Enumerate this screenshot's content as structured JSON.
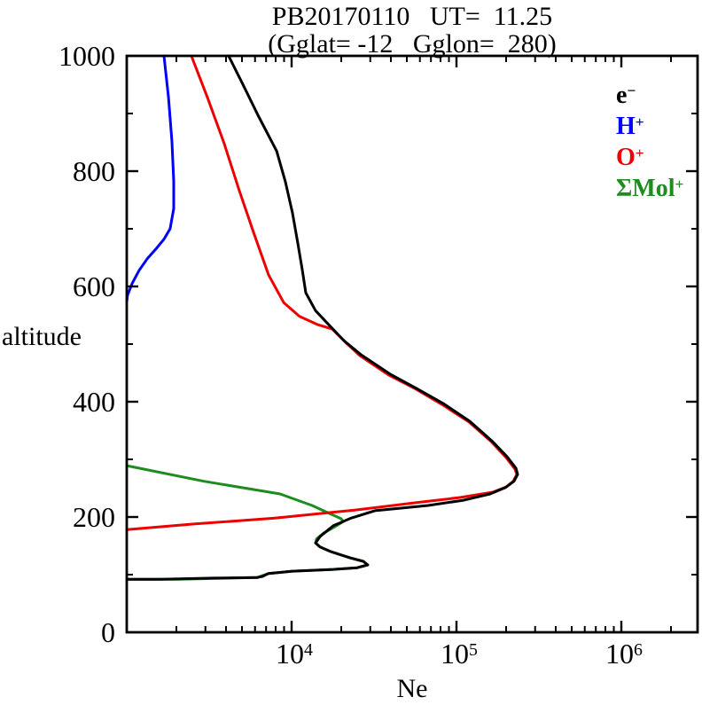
{
  "title": {
    "line1": "PB20170110   UT=  11.25",
    "line2": "(Gglat= -12   Gglon=  280)"
  },
  "y_axis": {
    "label": "altitude",
    "range": [
      0,
      1000
    ],
    "minor_step": 100,
    "ticks": [
      {
        "value": 1000,
        "label": "1000"
      },
      {
        "value": 800,
        "label": "800"
      },
      {
        "value": 600,
        "label": "600"
      },
      {
        "value": 400,
        "label": "400"
      },
      {
        "value": 200,
        "label": "200"
      },
      {
        "value": 0,
        "label": "0"
      }
    ]
  },
  "x_axis": {
    "label": "Ne",
    "scale": "log10",
    "log_range": [
      3,
      6.46
    ],
    "minor_multiples": [
      2,
      3,
      4,
      5,
      6,
      7,
      8,
      9
    ],
    "ticks": [
      {
        "log10": 4,
        "base": "10",
        "exp": "4"
      },
      {
        "log10": 5,
        "base": "10",
        "exp": "5"
      },
      {
        "log10": 6,
        "base": "10",
        "exp": "6"
      }
    ]
  },
  "legend": {
    "entries": [
      {
        "id": "electron",
        "base": "e",
        "sup": "−",
        "color": "#000000"
      },
      {
        "id": "h-plus",
        "base": "H",
        "sup": "+",
        "color": "#0000ff"
      },
      {
        "id": "o-plus",
        "base": "O",
        "sup": "+",
        "color": "#ee0000"
      },
      {
        "id": "mol-plus",
        "base": "ΣMol",
        "sup": "+",
        "color": "#1e8c1e"
      }
    ]
  },
  "chart_data": {
    "type": "line",
    "title": "PB20170110 UT= 11.25 (Gglat= -12 Gglon= 280)",
    "xlabel": "Ne",
    "ylabel": "altitude",
    "x_scale": "log10",
    "x_log_range": [
      3,
      6.46
    ],
    "ylim": [
      0,
      1000
    ],
    "grid": false,
    "legend_position": "upper-right-inside",
    "point_format": "[log10(Ne), altitude_km]",
    "series": [
      {
        "name": "e-",
        "color": "#000000",
        "points": [
          [
            3.618,
            1000
          ],
          [
            3.704,
            951
          ],
          [
            3.796,
            897
          ],
          [
            3.909,
            835
          ],
          [
            3.962,
            782
          ],
          [
            4.005,
            728
          ],
          [
            4.038,
            674
          ],
          [
            4.065,
            628
          ],
          [
            4.086,
            589
          ],
          [
            4.145,
            558
          ],
          [
            4.221,
            535
          ],
          [
            4.317,
            506
          ],
          [
            4.419,
            482
          ],
          [
            4.597,
            448
          ],
          [
            4.758,
            423
          ],
          [
            4.919,
            397
          ],
          [
            5.081,
            366
          ],
          [
            5.215,
            332
          ],
          [
            5.306,
            305
          ],
          [
            5.36,
            285
          ],
          [
            5.371,
            274
          ],
          [
            5.349,
            262
          ],
          [
            5.296,
            251
          ],
          [
            5.204,
            240
          ],
          [
            5.043,
            229
          ],
          [
            4.828,
            220
          ],
          [
            4.651,
            215
          ],
          [
            4.505,
            211
          ],
          [
            4.36,
            198
          ],
          [
            4.253,
            185
          ],
          [
            4.172,
            166
          ],
          [
            4.145,
            155
          ],
          [
            4.172,
            148
          ],
          [
            4.237,
            140
          ],
          [
            4.355,
            129
          ],
          [
            4.435,
            123
          ],
          [
            4.462,
            117
          ],
          [
            4.398,
            112
          ],
          [
            4.253,
            109
          ],
          [
            4.005,
            106
          ],
          [
            3.86,
            102
          ],
          [
            3.823,
            97
          ],
          [
            3.79,
            95
          ],
          [
            3.522,
            94
          ],
          [
            3.199,
            92
          ],
          [
            3.0,
            92
          ]
        ]
      },
      {
        "name": "H+",
        "color": "#0000ff",
        "points": [
          [
            3.226,
            1000
          ],
          [
            3.253,
            928
          ],
          [
            3.274,
            851
          ],
          [
            3.285,
            782
          ],
          [
            3.285,
            735
          ],
          [
            3.263,
            700
          ],
          [
            3.226,
            682
          ],
          [
            3.177,
            665
          ],
          [
            3.124,
            648
          ],
          [
            3.075,
            628
          ],
          [
            3.032,
            605
          ],
          [
            3.005,
            585
          ],
          [
            3.0,
            574
          ]
        ]
      },
      {
        "name": "O+",
        "color": "#ee0000",
        "points": [
          [
            3.392,
            1000
          ],
          [
            3.489,
            928
          ],
          [
            3.591,
            848
          ],
          [
            3.683,
            766
          ],
          [
            3.769,
            694
          ],
          [
            3.86,
            620
          ],
          [
            3.952,
            572
          ],
          [
            4.048,
            548
          ],
          [
            4.156,
            534
          ],
          [
            4.247,
            526
          ],
          [
            4.328,
            503
          ],
          [
            4.414,
            480
          ],
          [
            4.591,
            446
          ],
          [
            4.753,
            422
          ],
          [
            4.914,
            395
          ],
          [
            5.075,
            365
          ],
          [
            5.21,
            331
          ],
          [
            5.301,
            303
          ],
          [
            5.355,
            283
          ],
          [
            5.366,
            274
          ],
          [
            5.344,
            262
          ],
          [
            5.301,
            252
          ],
          [
            5.22,
            243
          ],
          [
            5.027,
            234
          ],
          [
            4.758,
            225
          ],
          [
            4.382,
            212
          ],
          [
            3.898,
            198
          ],
          [
            3.414,
            188
          ],
          [
            3.0,
            178
          ]
        ]
      },
      {
        "name": "SigmaMol+",
        "color": "#1e8c1e",
        "points": [
          [
            3.0,
            289
          ],
          [
            3.468,
            262
          ],
          [
            3.93,
            240
          ],
          [
            4.124,
            220
          ],
          [
            4.231,
            206
          ],
          [
            4.301,
            197
          ],
          [
            4.312,
            192
          ],
          [
            4.263,
            183
          ],
          [
            4.194,
            172
          ],
          [
            4.151,
            162
          ],
          [
            4.145,
            155
          ],
          [
            4.172,
            148
          ],
          [
            4.237,
            140
          ],
          [
            4.355,
            129
          ],
          [
            4.435,
            123
          ],
          [
            4.462,
            117
          ],
          [
            4.398,
            112
          ],
          [
            4.253,
            109
          ],
          [
            4.005,
            106
          ],
          [
            3.86,
            102
          ],
          [
            3.79,
            95
          ],
          [
            3.306,
            92
          ],
          [
            3.0,
            92
          ]
        ]
      }
    ]
  }
}
